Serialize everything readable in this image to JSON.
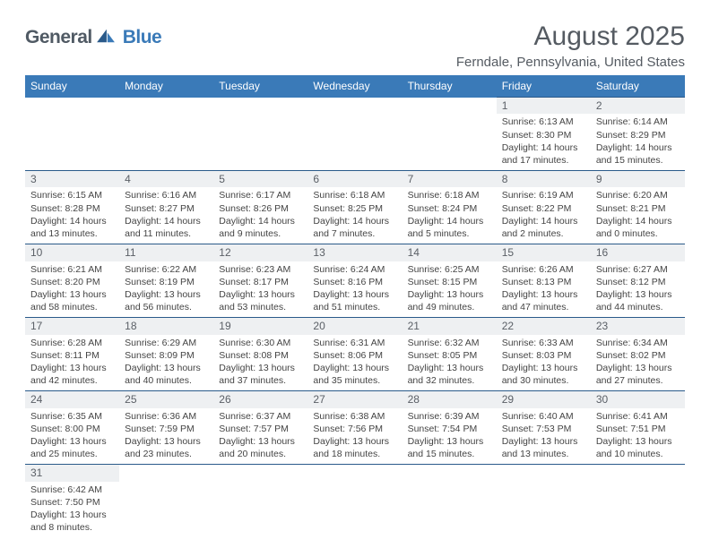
{
  "logo": {
    "general": "General",
    "blue": "Blue"
  },
  "title": "August 2025",
  "location": "Ferndale, Pennsylvania, United States",
  "colors": {
    "header_bg": "#3a7ab8",
    "header_text": "#ffffff",
    "daynum_bg": "#eef0f2",
    "row_border": "#2a5a8a",
    "text": "#444444",
    "title_text": "#555b62"
  },
  "weekdays": [
    "Sunday",
    "Monday",
    "Tuesday",
    "Wednesday",
    "Thursday",
    "Friday",
    "Saturday"
  ],
  "weeks": [
    [
      null,
      null,
      null,
      null,
      null,
      {
        "n": "1",
        "sr": "6:13 AM",
        "ss": "8:30 PM",
        "dl": "14 hours and 17 minutes."
      },
      {
        "n": "2",
        "sr": "6:14 AM",
        "ss": "8:29 PM",
        "dl": "14 hours and 15 minutes."
      }
    ],
    [
      {
        "n": "3",
        "sr": "6:15 AM",
        "ss": "8:28 PM",
        "dl": "14 hours and 13 minutes."
      },
      {
        "n": "4",
        "sr": "6:16 AM",
        "ss": "8:27 PM",
        "dl": "14 hours and 11 minutes."
      },
      {
        "n": "5",
        "sr": "6:17 AM",
        "ss": "8:26 PM",
        "dl": "14 hours and 9 minutes."
      },
      {
        "n": "6",
        "sr": "6:18 AM",
        "ss": "8:25 PM",
        "dl": "14 hours and 7 minutes."
      },
      {
        "n": "7",
        "sr": "6:18 AM",
        "ss": "8:24 PM",
        "dl": "14 hours and 5 minutes."
      },
      {
        "n": "8",
        "sr": "6:19 AM",
        "ss": "8:22 PM",
        "dl": "14 hours and 2 minutes."
      },
      {
        "n": "9",
        "sr": "6:20 AM",
        "ss": "8:21 PM",
        "dl": "14 hours and 0 minutes."
      }
    ],
    [
      {
        "n": "10",
        "sr": "6:21 AM",
        "ss": "8:20 PM",
        "dl": "13 hours and 58 minutes."
      },
      {
        "n": "11",
        "sr": "6:22 AM",
        "ss": "8:19 PM",
        "dl": "13 hours and 56 minutes."
      },
      {
        "n": "12",
        "sr": "6:23 AM",
        "ss": "8:17 PM",
        "dl": "13 hours and 53 minutes."
      },
      {
        "n": "13",
        "sr": "6:24 AM",
        "ss": "8:16 PM",
        "dl": "13 hours and 51 minutes."
      },
      {
        "n": "14",
        "sr": "6:25 AM",
        "ss": "8:15 PM",
        "dl": "13 hours and 49 minutes."
      },
      {
        "n": "15",
        "sr": "6:26 AM",
        "ss": "8:13 PM",
        "dl": "13 hours and 47 minutes."
      },
      {
        "n": "16",
        "sr": "6:27 AM",
        "ss": "8:12 PM",
        "dl": "13 hours and 44 minutes."
      }
    ],
    [
      {
        "n": "17",
        "sr": "6:28 AM",
        "ss": "8:11 PM",
        "dl": "13 hours and 42 minutes."
      },
      {
        "n": "18",
        "sr": "6:29 AM",
        "ss": "8:09 PM",
        "dl": "13 hours and 40 minutes."
      },
      {
        "n": "19",
        "sr": "6:30 AM",
        "ss": "8:08 PM",
        "dl": "13 hours and 37 minutes."
      },
      {
        "n": "20",
        "sr": "6:31 AM",
        "ss": "8:06 PM",
        "dl": "13 hours and 35 minutes."
      },
      {
        "n": "21",
        "sr": "6:32 AM",
        "ss": "8:05 PM",
        "dl": "13 hours and 32 minutes."
      },
      {
        "n": "22",
        "sr": "6:33 AM",
        "ss": "8:03 PM",
        "dl": "13 hours and 30 minutes."
      },
      {
        "n": "23",
        "sr": "6:34 AM",
        "ss": "8:02 PM",
        "dl": "13 hours and 27 minutes."
      }
    ],
    [
      {
        "n": "24",
        "sr": "6:35 AM",
        "ss": "8:00 PM",
        "dl": "13 hours and 25 minutes."
      },
      {
        "n": "25",
        "sr": "6:36 AM",
        "ss": "7:59 PM",
        "dl": "13 hours and 23 minutes."
      },
      {
        "n": "26",
        "sr": "6:37 AM",
        "ss": "7:57 PM",
        "dl": "13 hours and 20 minutes."
      },
      {
        "n": "27",
        "sr": "6:38 AM",
        "ss": "7:56 PM",
        "dl": "13 hours and 18 minutes."
      },
      {
        "n": "28",
        "sr": "6:39 AM",
        "ss": "7:54 PM",
        "dl": "13 hours and 15 minutes."
      },
      {
        "n": "29",
        "sr": "6:40 AM",
        "ss": "7:53 PM",
        "dl": "13 hours and 13 minutes."
      },
      {
        "n": "30",
        "sr": "6:41 AM",
        "ss": "7:51 PM",
        "dl": "13 hours and 10 minutes."
      }
    ],
    [
      {
        "n": "31",
        "sr": "6:42 AM",
        "ss": "7:50 PM",
        "dl": "13 hours and 8 minutes."
      },
      null,
      null,
      null,
      null,
      null,
      null
    ]
  ],
  "labels": {
    "sunrise": "Sunrise: ",
    "sunset": "Sunset: ",
    "daylight": "Daylight: "
  }
}
